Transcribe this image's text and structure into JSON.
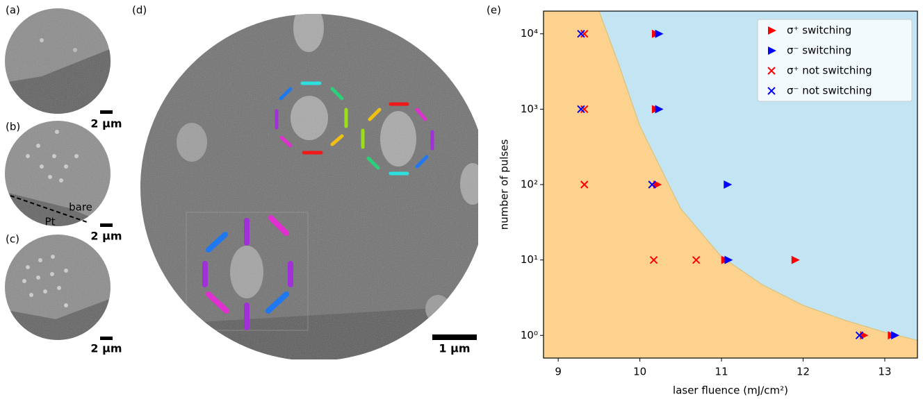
{
  "panel_labels": [
    "(a)",
    "(b)",
    "(c)",
    "(d)",
    "(e)"
  ],
  "scale_bars": [
    "2 µm",
    "2 µm",
    "2 µm",
    "1 µm"
  ],
  "annotations": {
    "bare": "bare",
    "pt": "Pt"
  },
  "chart_data": {
    "type": "scatter",
    "xlabel": "laser fluence (mJ/cm²)",
    "ylabel": "number of pulses",
    "xlim": [
      8.82,
      13.4
    ],
    "ylim": [
      0.5,
      20000
    ],
    "log_y": true,
    "xticks": [
      9,
      10,
      11,
      12,
      13
    ],
    "yticks": [
      {
        "value": 1,
        "label": "10⁰"
      },
      {
        "value": 10,
        "label": "10¹"
      },
      {
        "value": 100,
        "label": "10²"
      },
      {
        "value": 1000,
        "label": "10³"
      },
      {
        "value": 10000,
        "label": "10⁴"
      }
    ],
    "legend": "upper right",
    "regions": {
      "below_color": "#fcd28e",
      "above_color": "#c3e5f3",
      "boundary": {
        "x": [
          9.5,
          9.75,
          10.0,
          10.5,
          11.0,
          11.5,
          12.0,
          12.5,
          13.0,
          13.4
        ],
        "y": [
          20000,
          3700,
          600,
          48,
          11,
          4.7,
          2.5,
          1.6,
          1.1,
          0.86
        ]
      }
    },
    "series": [
      {
        "name": "σ⁺ switching",
        "color": "#ff0000",
        "marker": "triangle",
        "x": [
          10.19,
          10.19,
          10.21,
          11.04,
          11.9,
          12.74,
          13.08
        ],
        "y": [
          10000,
          1000,
          100,
          10,
          10,
          1,
          1
        ]
      },
      {
        "name": "σ⁻ switching",
        "color": "#0000ff",
        "marker": "triangle",
        "x": [
          10.23,
          10.23,
          11.07,
          11.08,
          13.12
        ],
        "y": [
          10000,
          1000,
          100,
          10,
          1
        ]
      },
      {
        "name": "σ⁺ not switching",
        "color": "#ff0000",
        "marker": "cross",
        "x": [
          9.32,
          9.32,
          9.32,
          10.17,
          10.69
        ],
        "y": [
          10000,
          1000,
          100,
          10,
          10
        ]
      },
      {
        "name": "σ⁻ not switching",
        "color": "#0000ff",
        "marker": "cross",
        "x": [
          9.28,
          9.28,
          10.15,
          12.69
        ],
        "y": [
          10000,
          1000,
          100,
          1
        ]
      }
    ]
  }
}
